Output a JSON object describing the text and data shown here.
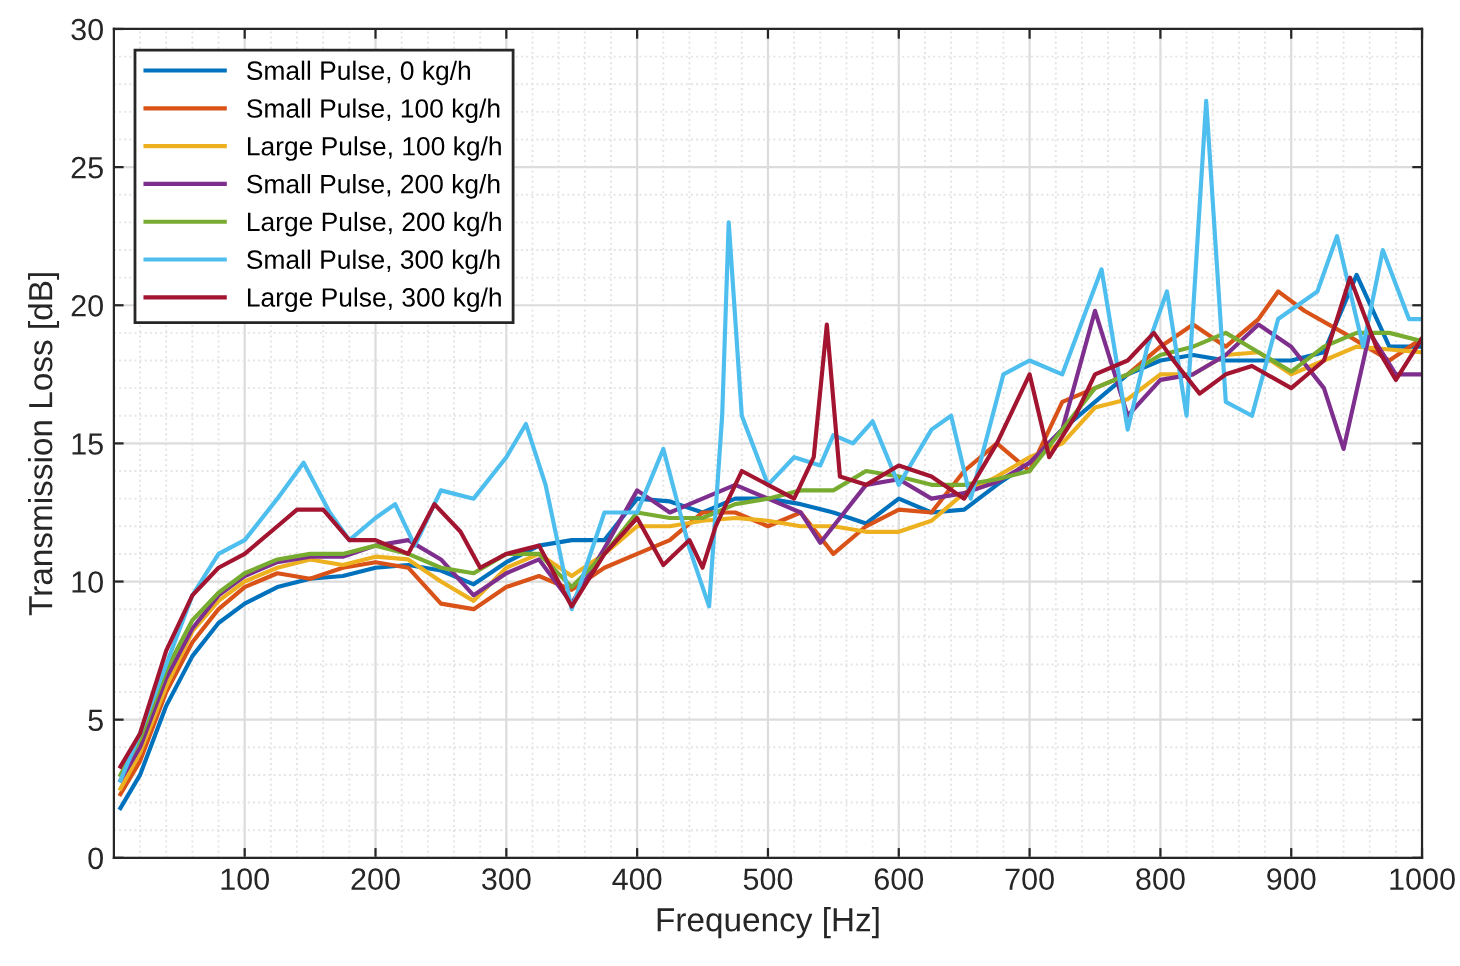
{
  "chart_data": {
    "type": "line",
    "xlabel": "Frequency [Hz]",
    "ylabel": "Transmission Loss [dB]",
    "xlim": [
      0,
      1000
    ],
    "xticks": [
      100,
      200,
      300,
      400,
      500,
      600,
      700,
      800,
      900,
      1000
    ],
    "ylim": [
      0,
      30
    ],
    "yticks": [
      0,
      5,
      10,
      15,
      20,
      25,
      30
    ],
    "grid": true,
    "legend": "top left",
    "marker": "none",
    "line_style": "solid",
    "series": [
      {
        "name": "Small Pulse, 0 kg/h",
        "color": "#0072bd",
        "x": [
          5,
          20,
          40,
          60,
          80,
          100,
          125,
          150,
          175,
          200,
          225,
          250,
          275,
          300,
          325,
          350,
          375,
          400,
          425,
          450,
          475,
          500,
          525,
          550,
          575,
          600,
          625,
          650,
          675,
          700,
          725,
          750,
          775,
          800,
          825,
          850,
          875,
          900,
          925,
          950,
          975,
          1000
        ],
        "values": [
          1.8,
          3,
          5.5,
          7.3,
          8.5,
          9.2,
          9.8,
          10.1,
          10.2,
          10.5,
          10.6,
          10.4,
          9.9,
          10.7,
          11.3,
          11.5,
          11.5,
          13,
          12.9,
          12.5,
          13,
          13,
          12.8,
          12.5,
          12.1,
          13,
          12.5,
          12.6,
          13.5,
          14.3,
          15.5,
          16.5,
          17.5,
          18,
          18.2,
          18,
          18,
          18,
          18.3,
          21.1,
          18.5,
          18.5
        ]
      },
      {
        "name": "Small Pulse, 100 kg/h",
        "color": "#d95319",
        "x": [
          5,
          20,
          40,
          60,
          80,
          100,
          125,
          150,
          175,
          200,
          225,
          250,
          275,
          300,
          325,
          350,
          375,
          400,
          425,
          450,
          475,
          500,
          525,
          550,
          575,
          600,
          625,
          650,
          675,
          700,
          725,
          750,
          775,
          800,
          825,
          850,
          875,
          890,
          910,
          940,
          975,
          1000
        ],
        "values": [
          2.3,
          3.5,
          6,
          7.8,
          9,
          9.8,
          10.3,
          10.1,
          10.5,
          10.7,
          10.5,
          9.2,
          9,
          9.8,
          10.2,
          9.7,
          10.5,
          11,
          11.5,
          12.5,
          12.5,
          12,
          12.5,
          11,
          12,
          12.6,
          12.5,
          14,
          15,
          14,
          16.5,
          17,
          17.5,
          18.5,
          19.3,
          18.5,
          19.5,
          20.5,
          19.8,
          19,
          18,
          18.8
        ]
      },
      {
        "name": "Large Pulse, 100 kg/h",
        "color": "#edb120",
        "x": [
          5,
          20,
          40,
          60,
          80,
          100,
          125,
          150,
          175,
          200,
          225,
          250,
          275,
          300,
          325,
          350,
          375,
          400,
          425,
          450,
          475,
          500,
          525,
          550,
          575,
          600,
          625,
          650,
          675,
          700,
          725,
          750,
          775,
          800,
          825,
          850,
          875,
          900,
          925,
          950,
          975,
          1000
        ],
        "values": [
          2.5,
          3.8,
          6.2,
          8.2,
          9.3,
          10,
          10.5,
          10.8,
          10.6,
          10.9,
          10.8,
          10,
          9.3,
          10.5,
          11,
          10.2,
          11,
          12,
          12,
          12.2,
          12.3,
          12.2,
          12,
          12,
          11.8,
          11.8,
          12.2,
          13.2,
          13.8,
          14.5,
          15,
          16.3,
          16.6,
          17.5,
          17.5,
          18.2,
          18.3,
          17.5,
          18,
          18.5,
          18.4,
          18.3
        ]
      },
      {
        "name": "Small Pulse, 200 kg/h",
        "color": "#7e2f8e",
        "x": [
          5,
          20,
          40,
          60,
          80,
          100,
          125,
          150,
          175,
          200,
          225,
          250,
          275,
          300,
          325,
          350,
          375,
          400,
          425,
          450,
          475,
          500,
          525,
          540,
          575,
          600,
          625,
          650,
          675,
          700,
          725,
          750,
          775,
          800,
          825,
          850,
          875,
          900,
          925,
          940,
          960,
          980,
          1000
        ],
        "values": [
          2.8,
          4,
          6.5,
          8.3,
          9.5,
          10.2,
          10.7,
          10.9,
          10.9,
          11.3,
          11.5,
          10.8,
          9.5,
          10.3,
          10.8,
          9.2,
          11.2,
          13.3,
          12.5,
          13,
          13.5,
          13,
          12.5,
          11.4,
          13.5,
          13.7,
          13,
          13.2,
          13.6,
          14.3,
          15.5,
          19.8,
          16,
          17.3,
          17.5,
          18.2,
          19.3,
          18.5,
          17,
          14.8,
          19,
          17.5,
          17.5
        ]
      },
      {
        "name": "Large Pulse, 200 kg/h",
        "color": "#77ac30",
        "x": [
          5,
          20,
          40,
          60,
          80,
          100,
          125,
          150,
          175,
          200,
          225,
          250,
          275,
          300,
          325,
          350,
          375,
          400,
          425,
          450,
          475,
          500,
          525,
          550,
          575,
          600,
          625,
          650,
          675,
          700,
          725,
          750,
          775,
          800,
          825,
          850,
          875,
          900,
          925,
          950,
          975,
          1000
        ],
        "values": [
          3,
          4.3,
          6.8,
          8.6,
          9.6,
          10.3,
          10.8,
          11,
          11,
          11.3,
          11,
          10.5,
          10.3,
          11,
          11,
          9.8,
          11,
          12.5,
          12.3,
          12.3,
          12.8,
          13,
          13.3,
          13.3,
          14,
          13.8,
          13.5,
          13.5,
          13.7,
          14,
          15.5,
          17,
          17.5,
          18.2,
          18.5,
          19,
          18.3,
          17.6,
          18.5,
          19,
          19,
          18.7
        ]
      },
      {
        "name": "Small Pulse, 300 kg/h",
        "color": "#4dbeee",
        "x": [
          5,
          20,
          40,
          60,
          80,
          100,
          125,
          145,
          165,
          180,
          200,
          215,
          230,
          250,
          275,
          300,
          315,
          330,
          350,
          375,
          400,
          420,
          440,
          455,
          465,
          470,
          480,
          500,
          520,
          540,
          550,
          565,
          580,
          600,
          625,
          640,
          655,
          680,
          700,
          725,
          755,
          775,
          790,
          805,
          820,
          835,
          850,
          870,
          890,
          920,
          935,
          955,
          970,
          990,
          1000
        ],
        "values": [
          2.8,
          4.5,
          7,
          9.5,
          11,
          11.5,
          13,
          14.3,
          12.5,
          11.5,
          12.3,
          12.8,
          11.3,
          13.3,
          13,
          14.5,
          15.7,
          13.5,
          9,
          12.5,
          12.5,
          14.8,
          11.2,
          9.1,
          16,
          23,
          16,
          13.5,
          14.5,
          14.2,
          15.3,
          15,
          15.8,
          13.5,
          15.5,
          16,
          13,
          17.5,
          18,
          17.5,
          21.3,
          15.5,
          18.5,
          20.5,
          16,
          27.4,
          16.5,
          16,
          19.5,
          20.5,
          22.5,
          18.5,
          22,
          19.5,
          19.5
        ]
      },
      {
        "name": "Large Pulse, 300 kg/h",
        "color": "#a2142f",
        "x": [
          5,
          20,
          40,
          60,
          80,
          100,
          125,
          140,
          160,
          180,
          200,
          225,
          245,
          265,
          280,
          300,
          325,
          350,
          375,
          400,
          420,
          440,
          450,
          460,
          480,
          500,
          520,
          535,
          545,
          555,
          575,
          600,
          625,
          650,
          675,
          700,
          715,
          735,
          750,
          775,
          795,
          810,
          830,
          850,
          870,
          900,
          925,
          945,
          965,
          980,
          1000
        ],
        "values": [
          3.3,
          4.5,
          7.5,
          9.5,
          10.5,
          11,
          12,
          12.6,
          12.6,
          11.5,
          11.5,
          11,
          12.8,
          11.8,
          10.5,
          11,
          11.3,
          9.1,
          11,
          12.3,
          10.6,
          11.5,
          10.5,
          12,
          14,
          13.5,
          13,
          14.5,
          19.3,
          13.8,
          13.5,
          14.2,
          13.8,
          13,
          15,
          17.5,
          14.5,
          16,
          17.5,
          18,
          19,
          18,
          16.8,
          17.5,
          17.8,
          17,
          18,
          21,
          18.5,
          17.3,
          18.8
        ]
      }
    ]
  }
}
